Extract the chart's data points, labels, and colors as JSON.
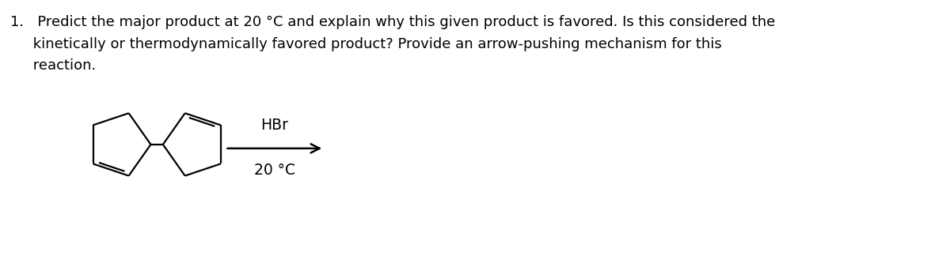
{
  "title_line1": "1.   Predict the major product at 20 °C and explain why this given product is favored. Is this considered the",
  "title_line2": "     kinetically or thermodynamically favored product? Provide an arrow-pushing mechanism for this",
  "title_line3": "     reaction.",
  "reagent_above": "HBr",
  "reagent_below": "20 °C",
  "background_color": "#ffffff",
  "text_color": "#000000",
  "title_fontsize": 13.0,
  "reagent_fontsize": 13.5,
  "figsize": [
    12.0,
    3.38
  ],
  "dpi": 100,
  "lw": 1.6
}
